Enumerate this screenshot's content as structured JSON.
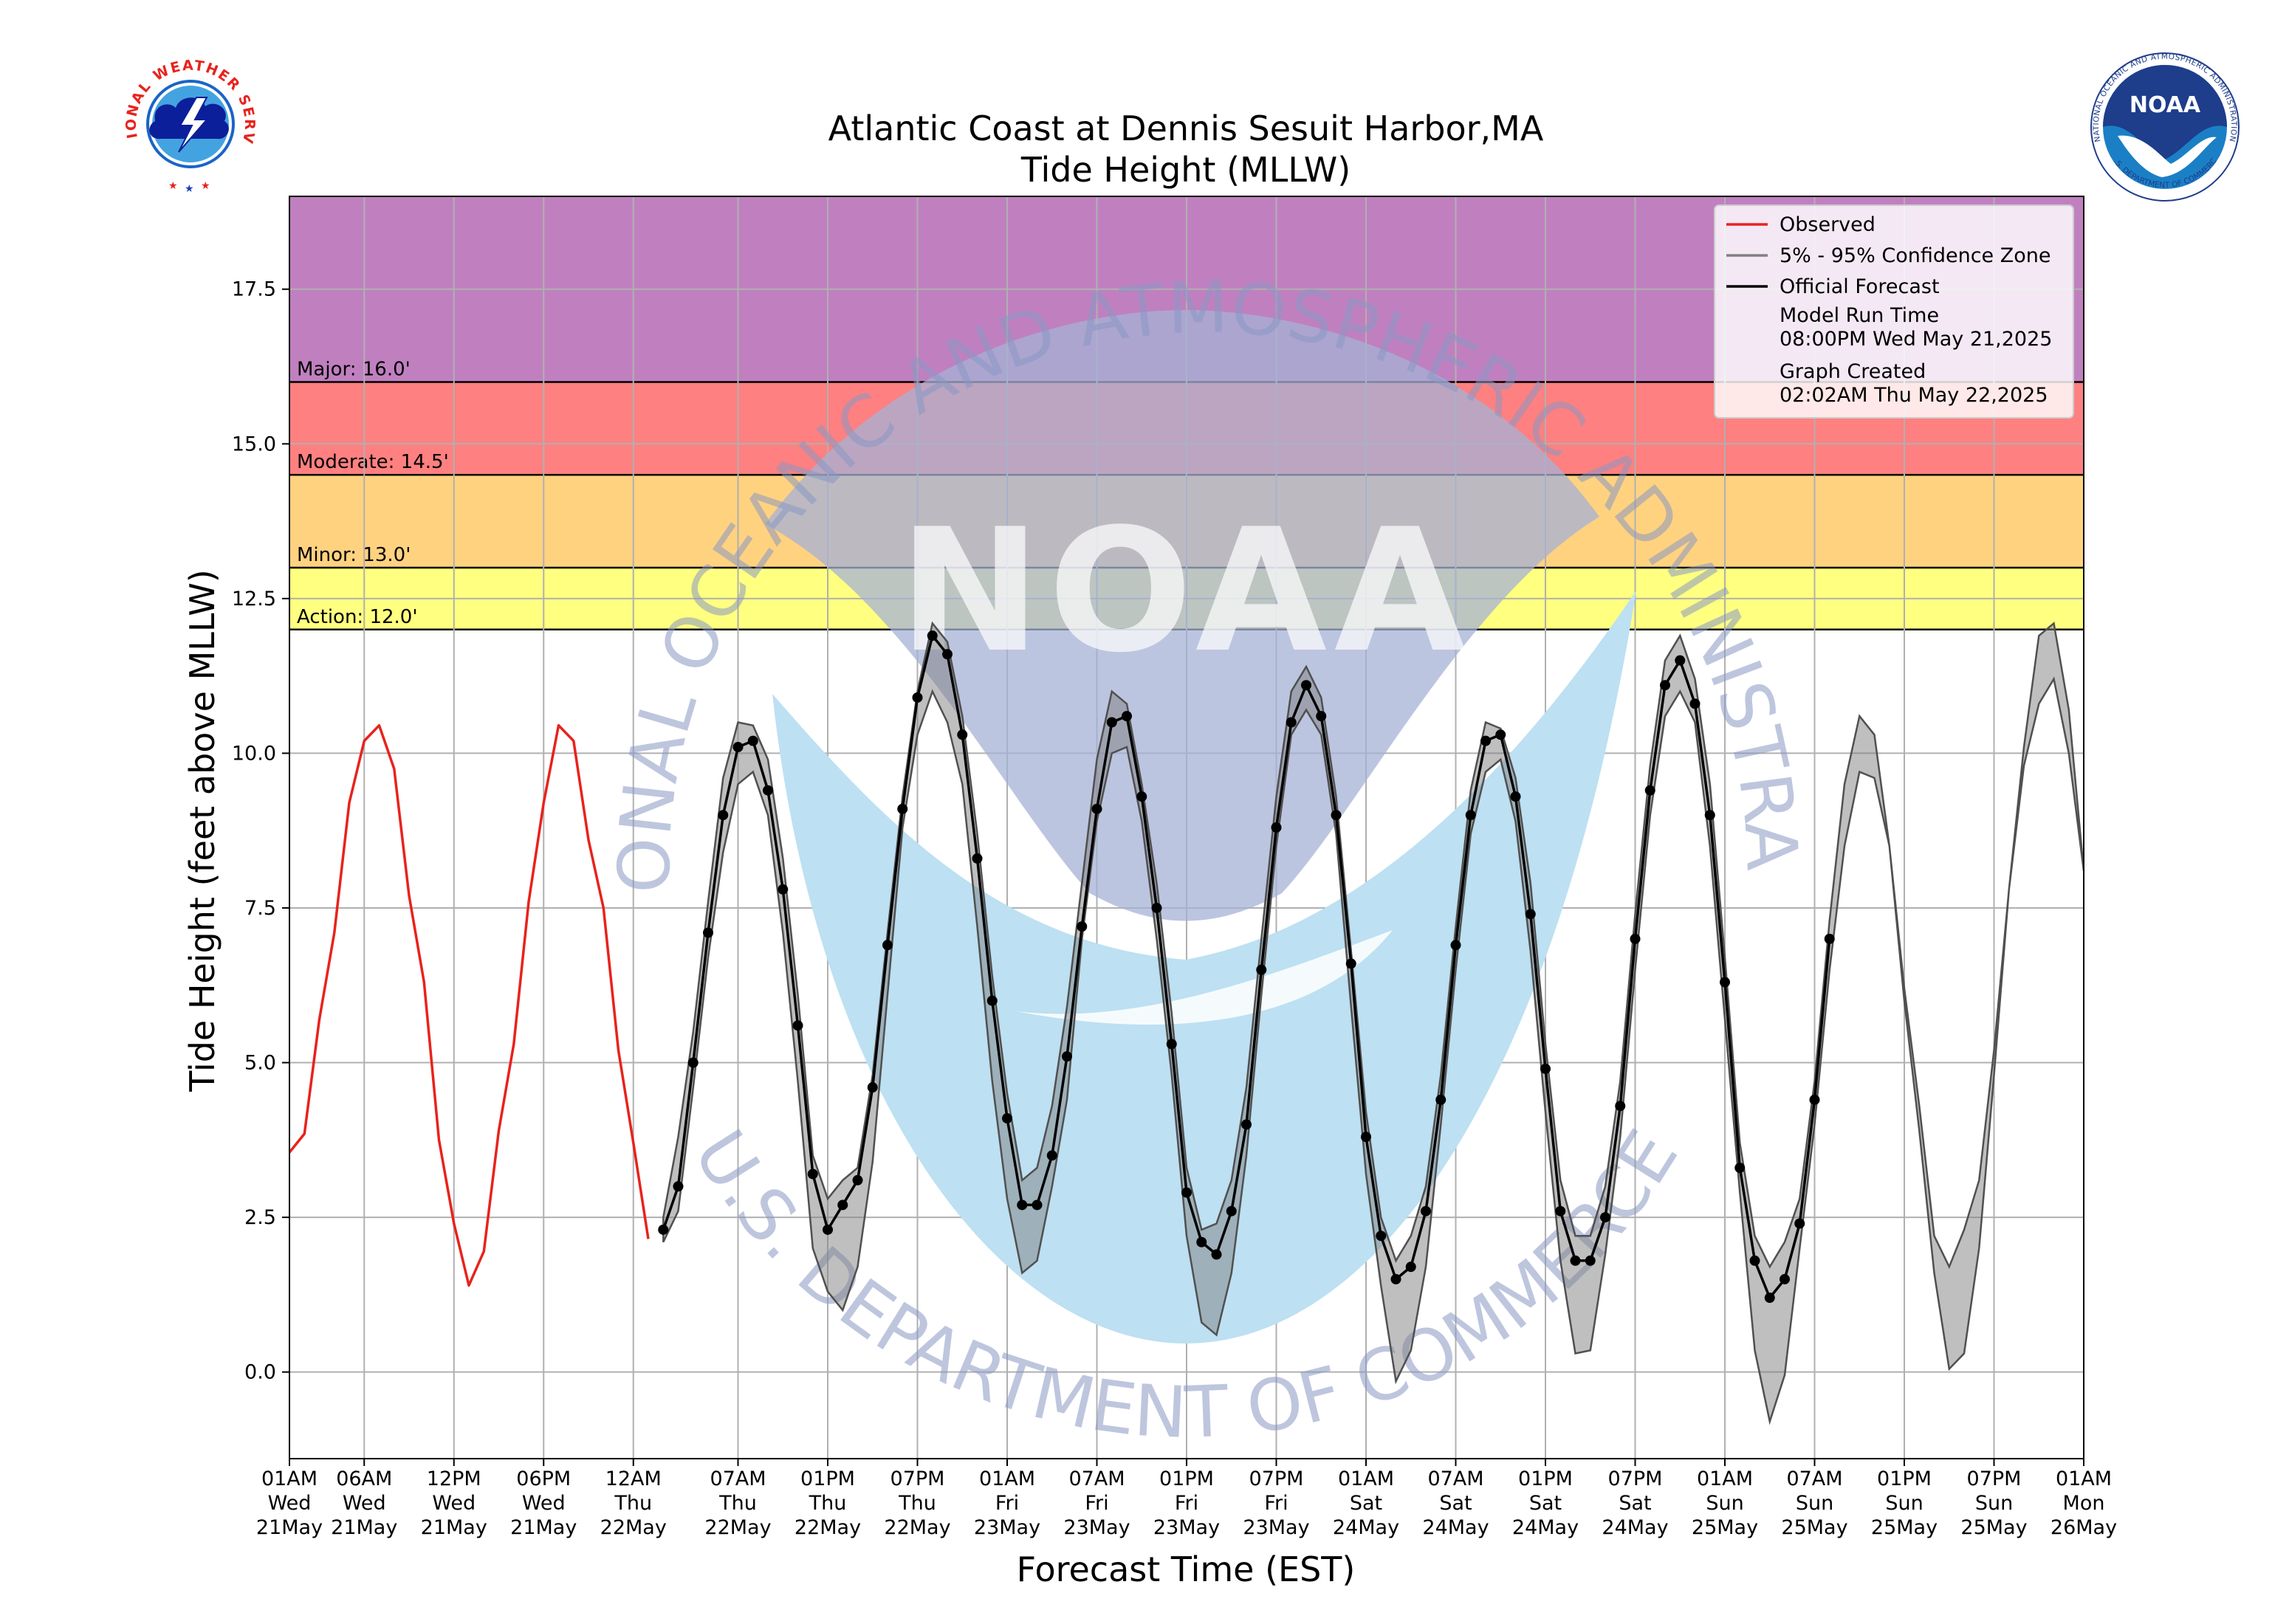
{
  "logos": {
    "nws_text": "NATIONAL WEATHER SERVICE",
    "noaa_text": "NOAA",
    "noaa_ring_text": "NATIONAL OCEANIC AND ATMOSPHERIC ADMINISTRATION",
    "noaa_ring_bottom": "U.S. DEPARTMENT OF COMMERCE"
  },
  "watermark": {
    "top_text": "NATIONAL OCEANIC AND ATMOSPHERIC ADMINISTRATION",
    "bottom_text": "U.S. DEPARTMENT OF COMMERCE",
    "center_text": "NOAA"
  },
  "chart_data": {
    "type": "line",
    "title": "Atlantic Coast at Dennis Sesuit Harbor,MA",
    "subtitle": "Tide Height (MLLW)",
    "xlabel": "Forecast Time (EST)",
    "ylabel": "Tide Height (feet above MLLW)",
    "ylim": [
      -1.4,
      19.0
    ],
    "xlim_hours": [
      0,
      120
    ],
    "x_unit": "hours after 01AM Wed 21May (EST)",
    "yticks": [
      "0.0",
      "2.5",
      "5.0",
      "7.5",
      "10.0",
      "12.5",
      "15.0",
      "17.5"
    ],
    "ytick_values": [
      0,
      2.5,
      5,
      7.5,
      10,
      12.5,
      15,
      17.5
    ],
    "xticks": [
      {
        "h": 0,
        "lines": [
          "01AM",
          "Wed",
          "21May"
        ]
      },
      {
        "h": 5,
        "lines": [
          "06AM",
          "Wed",
          "21May"
        ]
      },
      {
        "h": 11,
        "lines": [
          "12PM",
          "Wed",
          "21May"
        ]
      },
      {
        "h": 17,
        "lines": [
          "06PM",
          "Wed",
          "21May"
        ]
      },
      {
        "h": 23,
        "lines": [
          "12AM",
          "Thu",
          "22May"
        ]
      },
      {
        "h": 30,
        "lines": [
          "07AM",
          "Thu",
          "22May"
        ]
      },
      {
        "h": 36,
        "lines": [
          "01PM",
          "Thu",
          "22May"
        ]
      },
      {
        "h": 42,
        "lines": [
          "07PM",
          "Thu",
          "22May"
        ]
      },
      {
        "h": 48,
        "lines": [
          "01AM",
          "Fri",
          "23May"
        ]
      },
      {
        "h": 54,
        "lines": [
          "07AM",
          "Fri",
          "23May"
        ]
      },
      {
        "h": 60,
        "lines": [
          "01PM",
          "Fri",
          "23May"
        ]
      },
      {
        "h": 66,
        "lines": [
          "07PM",
          "Fri",
          "23May"
        ]
      },
      {
        "h": 72,
        "lines": [
          "01AM",
          "Sat",
          "24May"
        ]
      },
      {
        "h": 78,
        "lines": [
          "07AM",
          "Sat",
          "24May"
        ]
      },
      {
        "h": 84,
        "lines": [
          "01PM",
          "Sat",
          "24May"
        ]
      },
      {
        "h": 90,
        "lines": [
          "07PM",
          "Sat",
          "24May"
        ]
      },
      {
        "h": 96,
        "lines": [
          "01AM",
          "Sun",
          "25May"
        ]
      },
      {
        "h": 102,
        "lines": [
          "07AM",
          "Sun",
          "25May"
        ]
      },
      {
        "h": 108,
        "lines": [
          "01PM",
          "Sun",
          "25May"
        ]
      },
      {
        "h": 114,
        "lines": [
          "07PM",
          "Sun",
          "25May"
        ]
      },
      {
        "h": 120,
        "lines": [
          "01AM",
          "Mon",
          "26May"
        ]
      }
    ],
    "flood_zones": [
      {
        "label": "Action: 12.0'",
        "from": 12.0,
        "to": 13.0,
        "color": "#ffff80"
      },
      {
        "label": "Minor: 13.0'",
        "from": 13.0,
        "to": 14.5,
        "color": "#ffd280"
      },
      {
        "label": "Moderate: 14.5'",
        "from": 14.5,
        "to": 16.0,
        "color": "#ff8080"
      },
      {
        "label": "Major: 16.0'",
        "from": 16.0,
        "to": 19.0,
        "color": "#c080c0"
      }
    ],
    "legend": {
      "placement": "top-right",
      "entries": [
        {
          "label": "Observed",
          "color": "#e8221c"
        },
        {
          "label": "5% - 95% Confidence Zone",
          "color": "#808080"
        },
        {
          "label": "Official Forecast",
          "color": "#000000"
        }
      ],
      "model_run_label": "Model Run Time",
      "model_run_value": "08:00PM Wed May 21,2025",
      "graph_created_label": "Graph Created",
      "graph_created_value": "02:02AM Thu May 22,2025"
    },
    "series": [
      {
        "name": "Observed",
        "color": "#e8221c",
        "x": [
          0,
          1,
          2,
          3,
          4,
          5,
          6,
          7,
          8,
          9,
          10,
          11,
          12,
          13,
          14,
          15,
          16,
          17,
          18,
          19,
          20,
          21,
          22,
          23,
          24
        ],
        "y": [
          3.55,
          3.85,
          5.7,
          7.1,
          9.2,
          10.2,
          10.45,
          9.75,
          7.7,
          6.3,
          3.75,
          2.4,
          1.4,
          1.95,
          3.9,
          5.3,
          7.6,
          9.2,
          10.45,
          10.2,
          8.6,
          7.5,
          5.2,
          3.7,
          2.15
        ]
      },
      {
        "name": "Official Forecast",
        "color": "#000000",
        "x": [
          25,
          26,
          27,
          28,
          29,
          30,
          31,
          32,
          33,
          34,
          35,
          36,
          37,
          38,
          39,
          40,
          41,
          42,
          43,
          44,
          45,
          46,
          47,
          48,
          49,
          50,
          51,
          52,
          53,
          54,
          55,
          56,
          57,
          58,
          59,
          60,
          61,
          62,
          63,
          64,
          65,
          66,
          67,
          68,
          69,
          70,
          71,
          72,
          73,
          74,
          75,
          76,
          77,
          78,
          79,
          80,
          81,
          82,
          83,
          84,
          85,
          86,
          87,
          88,
          89,
          90,
          91,
          92,
          93,
          94,
          95,
          96,
          97,
          98,
          99,
          100,
          101,
          102,
          103
        ],
        "y": [
          2.3,
          3.0,
          5.0,
          7.1,
          9.0,
          10.1,
          10.2,
          9.4,
          7.8,
          5.6,
          3.2,
          2.3,
          2.7,
          3.1,
          4.6,
          6.9,
          9.1,
          10.9,
          11.9,
          11.6,
          10.3,
          8.3,
          6.0,
          4.1,
          2.7,
          2.7,
          3.5,
          5.1,
          7.2,
          9.1,
          10.5,
          10.6,
          9.3,
          7.5,
          5.3,
          2.9,
          2.1,
          1.9,
          2.6,
          4.0,
          6.5,
          8.8,
          10.5,
          11.1,
          10.6,
          9.0,
          6.6,
          3.8,
          2.2,
          1.5,
          1.7,
          2.6,
          4.4,
          6.9,
          9.0,
          10.2,
          10.3,
          9.3,
          7.4,
          4.9,
          2.6,
          1.8,
          1.8,
          2.5,
          4.3,
          7.0,
          9.4,
          11.1,
          11.5,
          10.8,
          9.0,
          6.3,
          3.3,
          1.8,
          1.2,
          1.5,
          2.4,
          4.4,
          7.0
        ]
      },
      {
        "name": "5% - 95% Confidence Zone",
        "color": "#808080",
        "x": [
          25,
          26,
          27,
          28,
          29,
          30,
          31,
          32,
          33,
          34,
          35,
          36,
          37,
          38,
          39,
          40,
          41,
          42,
          43,
          44,
          45,
          46,
          47,
          48,
          49,
          50,
          51,
          52,
          53,
          54,
          55,
          56,
          57,
          58,
          59,
          60,
          61,
          62,
          63,
          64,
          65,
          66,
          67,
          68,
          69,
          70,
          71,
          72,
          73,
          74,
          75,
          76,
          77,
          78,
          79,
          80,
          81,
          82,
          83,
          84,
          85,
          86,
          87,
          88,
          89,
          90,
          91,
          92,
          93,
          94,
          95,
          96,
          97,
          98,
          99,
          100,
          101,
          102,
          103,
          104,
          105,
          106,
          107,
          108,
          109,
          110,
          111,
          112,
          113,
          114,
          115,
          116,
          117,
          118,
          119,
          120
        ],
        "upper": [
          2.5,
          3.8,
          5.5,
          7.6,
          9.6,
          10.5,
          10.45,
          9.9,
          8.3,
          6.1,
          3.5,
          2.8,
          3.1,
          3.3,
          4.8,
          7.1,
          9.3,
          11.0,
          12.1,
          11.8,
          10.6,
          8.7,
          6.4,
          4.5,
          3.1,
          3.3,
          4.3,
          5.9,
          7.9,
          9.9,
          11.0,
          10.8,
          9.5,
          7.9,
          5.8,
          3.3,
          2.3,
          2.4,
          3.1,
          4.6,
          7.0,
          9.3,
          11.0,
          11.4,
          10.9,
          9.3,
          6.8,
          4.2,
          2.5,
          1.8,
          2.2,
          3.0,
          4.8,
          7.2,
          9.4,
          10.5,
          10.4,
          9.6,
          7.9,
          5.3,
          3.1,
          2.2,
          2.2,
          3.0,
          4.7,
          7.4,
          9.8,
          11.5,
          11.9,
          11.2,
          9.5,
          6.7,
          3.7,
          2.2,
          1.7,
          2.1,
          2.8,
          4.7,
          7.3,
          9.5,
          10.6,
          10.3,
          8.5,
          6.2,
          4.3,
          2.2,
          1.7,
          2.3,
          3.1,
          5.2,
          7.8,
          10.1,
          11.9,
          12.1,
          10.7,
          8.1
        ],
        "lower": [
          2.1,
          2.6,
          4.6,
          6.7,
          8.4,
          9.5,
          9.7,
          9.0,
          7.1,
          4.7,
          2.0,
          1.3,
          1.0,
          1.7,
          3.4,
          6.1,
          8.8,
          10.3,
          11.0,
          10.5,
          9.5,
          7.2,
          4.7,
          2.8,
          1.6,
          1.8,
          3.0,
          4.4,
          7.0,
          8.9,
          10.0,
          10.1,
          8.9,
          7.0,
          4.8,
          2.2,
          0.8,
          0.6,
          1.6,
          3.5,
          6.1,
          8.5,
          10.3,
          10.7,
          10.3,
          8.7,
          5.9,
          3.2,
          1.4,
          -0.15,
          0.35,
          1.7,
          4.0,
          6.5,
          8.7,
          9.7,
          9.9,
          8.9,
          6.8,
          4.2,
          1.8,
          0.3,
          0.35,
          1.9,
          3.8,
          6.5,
          9.0,
          10.6,
          11.0,
          10.5,
          8.5,
          5.7,
          2.9,
          0.35,
          -0.8,
          -0.05,
          2.0,
          4.0,
          6.5,
          8.5,
          9.7,
          9.6,
          8.5,
          6.0,
          3.9,
          1.6,
          0.05,
          0.3,
          2.0,
          4.8,
          7.8,
          9.8,
          10.8,
          11.2,
          10.0,
          8.1
        ]
      }
    ]
  }
}
